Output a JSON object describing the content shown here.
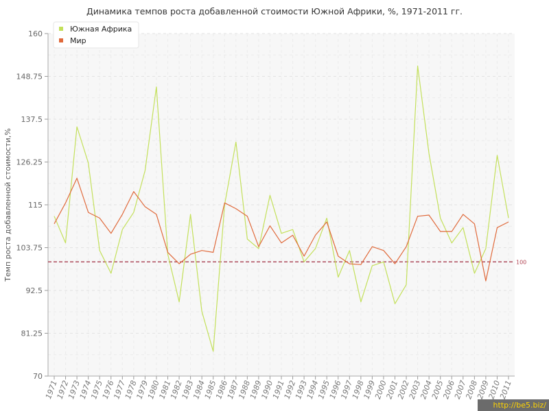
{
  "chart_data": {
    "type": "line",
    "title": "Динамика темпов роста добавленной стоимости Южной Африки, %, 1971-2011 гг.",
    "ylabel": "Темп роста добавленной стоимости,%",
    "xlabel": "",
    "ylim": [
      70,
      160
    ],
    "yticks": [
      "160",
      "148.75",
      "137.5",
      "126.25",
      "115",
      "103.75",
      "92.5",
      "81.25",
      "70"
    ],
    "categories": [
      "1971",
      "1972",
      "1973",
      "1974",
      "1975",
      "1976",
      "1977",
      "1978",
      "1979",
      "1980",
      "1981",
      "1982",
      "1983",
      "1984",
      "1985",
      "1986",
      "1987",
      "1988",
      "1989",
      "1990",
      "1991",
      "1992",
      "1993",
      "1994",
      "1995",
      "1996",
      "1997",
      "1998",
      "1999",
      "2000",
      "2001",
      "2002",
      "2003",
      "2004",
      "2005",
      "2006",
      "2007",
      "2008",
      "2009",
      "2010",
      "2011"
    ],
    "series": [
      {
        "name": "Южная Африка",
        "color": "#c3e05a",
        "values": [
          112,
          105,
          135.5,
          126,
          103,
          97,
          108.5,
          113,
          124,
          146,
          102,
          89.5,
          112.5,
          87,
          76.5,
          115,
          131.5,
          106,
          103.5,
          117.5,
          107.5,
          108.5,
          100,
          103.5,
          111.5,
          96,
          103,
          89.5,
          99,
          100,
          89,
          94,
          151.5,
          128.5,
          111.5,
          105,
          109,
          97,
          103.5,
          128,
          111.5
        ]
      },
      {
        "name": "Мир",
        "color": "#e0693a",
        "values": [
          110,
          115.5,
          122,
          113,
          111.5,
          107.5,
          112.5,
          118.5,
          114.5,
          112.5,
          102.5,
          99.5,
          102,
          103,
          102.5,
          115.5,
          114,
          112,
          104,
          109.5,
          105,
          107,
          101.5,
          107,
          110.5,
          101.5,
          99.5,
          99.3,
          104,
          103,
          99.5,
          104,
          112,
          112.3,
          108,
          108,
          112.5,
          110,
          95,
          109,
          110.5
        ]
      }
    ],
    "reference_line": {
      "value": 100,
      "label": "100",
      "color": "#a63a4c"
    },
    "legend_position": "top-left",
    "grid": true
  },
  "watermark": "http://be5.biz/"
}
